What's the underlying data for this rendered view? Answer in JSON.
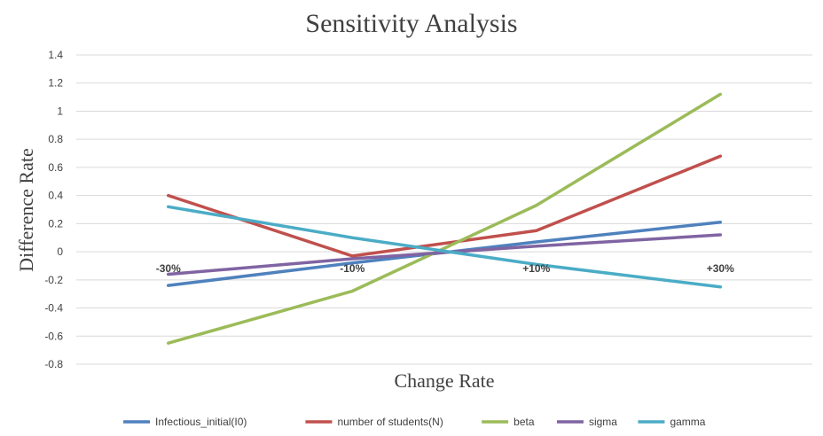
{
  "chart_data": {
    "type": "line",
    "title": "Sensitivity Analysis",
    "xlabel": "Change Rate",
    "ylabel": "Difference Rate",
    "categories": [
      "-30%",
      "-10%",
      "+10%",
      "+30%"
    ],
    "ylim": [
      -0.8,
      1.4
    ],
    "yticks": [
      -0.8,
      -0.6,
      -0.4,
      -0.2,
      0,
      0.2,
      0.4,
      0.6,
      0.8,
      1,
      1.2,
      1.4
    ],
    "grid": true,
    "legend_position": "bottom",
    "series": [
      {
        "name": "Infectious_initial(I0)",
        "color": "#4f81bd",
        "values": [
          -0.24,
          -0.08,
          0.07,
          0.21
        ]
      },
      {
        "name": "number of students(N)",
        "color": "#c0504d",
        "values": [
          0.4,
          -0.03,
          0.15,
          0.68
        ]
      },
      {
        "name": "beta",
        "color": "#9bbb59",
        "values": [
          -0.65,
          -0.28,
          0.33,
          1.12
        ]
      },
      {
        "name": "sigma",
        "color": "#8064a2",
        "values": [
          -0.16,
          -0.05,
          0.04,
          0.12
        ]
      },
      {
        "name": "gamma",
        "color": "#4bacc6",
        "values": [
          0.32,
          0.1,
          -0.09,
          -0.25
        ]
      }
    ]
  }
}
